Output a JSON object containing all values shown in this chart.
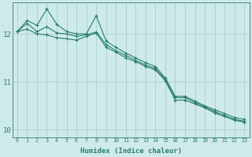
{
  "xlabel": "Humidex (Indice chaleur)",
  "ylabel": "",
  "bg_color": "#ceeaea",
  "line_color": "#2a7d6e",
  "grid_color": "#aacfcf",
  "xlim": [
    -0.5,
    23.5
  ],
  "ylim": [
    9.85,
    12.65
  ],
  "xticks": [
    0,
    1,
    2,
    3,
    4,
    5,
    6,
    7,
    8,
    9,
    10,
    11,
    12,
    13,
    14,
    15,
    16,
    17,
    18,
    19,
    20,
    21,
    22,
    23
  ],
  "yticks": [
    10,
    11,
    12
  ],
  "line1_x": [
    0,
    1,
    2,
    3,
    4,
    5,
    6,
    7,
    8,
    9,
    10,
    11,
    12,
    13,
    14,
    15,
    16,
    17,
    18,
    19,
    20,
    21,
    22,
    23
  ],
  "line1_y": [
    12.05,
    12.28,
    12.18,
    12.52,
    12.2,
    12.05,
    12.0,
    12.0,
    12.38,
    11.85,
    11.72,
    11.6,
    11.5,
    11.4,
    11.32,
    11.08,
    10.7,
    10.7,
    10.6,
    10.5,
    10.42,
    10.34,
    10.26,
    10.22
  ],
  "line2_x": [
    0,
    1,
    2,
    3,
    4,
    5,
    6,
    7,
    8,
    9,
    10,
    11,
    12,
    13,
    14,
    15,
    16,
    17,
    18,
    19,
    20,
    21,
    22,
    23
  ],
  "line2_y": [
    12.05,
    12.22,
    12.05,
    12.15,
    12.02,
    12.0,
    11.95,
    11.98,
    12.04,
    11.78,
    11.65,
    11.55,
    11.45,
    11.35,
    11.28,
    11.05,
    10.67,
    10.67,
    10.57,
    10.48,
    10.38,
    10.3,
    10.22,
    10.18
  ],
  "line3_x": [
    0,
    1,
    2,
    3,
    4,
    5,
    6,
    7,
    8,
    9,
    10,
    11,
    12,
    13,
    14,
    15,
    16,
    17,
    18,
    19,
    20,
    21,
    22,
    23
  ],
  "line3_y": [
    12.05,
    12.1,
    12.0,
    11.98,
    11.92,
    11.9,
    11.87,
    11.95,
    12.02,
    11.72,
    11.62,
    11.5,
    11.42,
    11.32,
    11.25,
    11.02,
    10.62,
    10.62,
    10.54,
    10.46,
    10.35,
    10.28,
    10.2,
    10.16
  ]
}
